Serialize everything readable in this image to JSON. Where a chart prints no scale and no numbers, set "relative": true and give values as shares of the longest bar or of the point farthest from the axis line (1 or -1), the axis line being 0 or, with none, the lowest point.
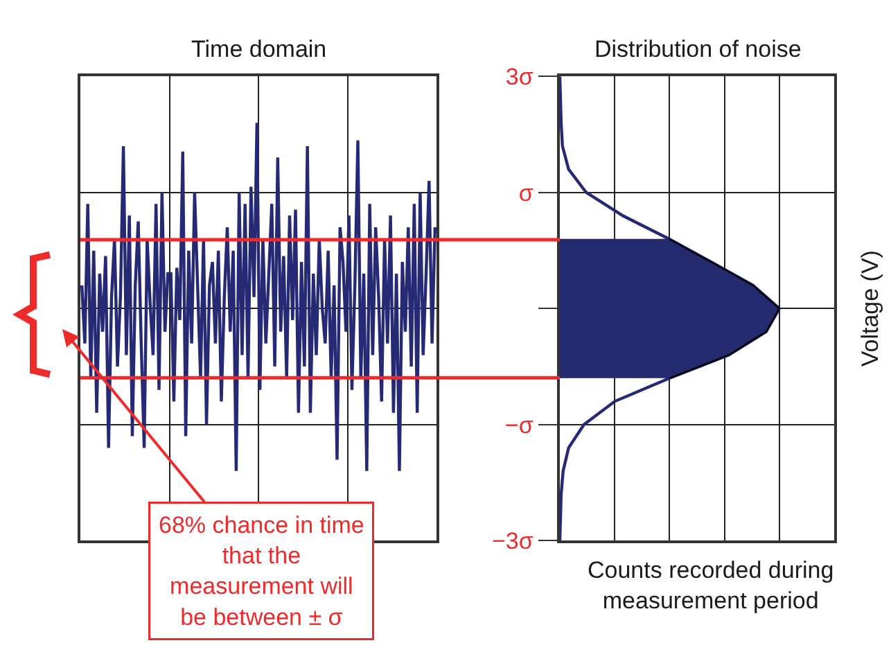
{
  "chart_data": [
    {
      "type": "line",
      "title": "Time domain",
      "relative": true,
      "categories": [
        null,
        null,
        null,
        null,
        null,
        null,
        null,
        null,
        null,
        null,
        null,
        null,
        null,
        null,
        null,
        null,
        null,
        null,
        null,
        null,
        null,
        null,
        null,
        null,
        null,
        null,
        null,
        null,
        null,
        null,
        null,
        null,
        null,
        null,
        null,
        null,
        null,
        null,
        null,
        null,
        null,
        null,
        null,
        null,
        null,
        null,
        null,
        null,
        null,
        null,
        null,
        null,
        null,
        null,
        null,
        null,
        null,
        null,
        null,
        null,
        null,
        null,
        null,
        null,
        null,
        null,
        null,
        null,
        null,
        null,
        null,
        null,
        null,
        null,
        null,
        null,
        null,
        null,
        null,
        null,
        null,
        null,
        null,
        null,
        null,
        null,
        null,
        null,
        null,
        null,
        null,
        null,
        null,
        null,
        null,
        null,
        null,
        null,
        null,
        null,
        null,
        null,
        null,
        null,
        null,
        null,
        null,
        null,
        null,
        null,
        null,
        null,
        null,
        null,
        null,
        null,
        null,
        null,
        null,
        null
      ],
      "values": [
        0.611,
        0.472,
        0.806,
        0.389,
        0.694,
        0.306,
        0.639,
        0.5,
        0.681,
        0.222,
        0.583,
        0.722,
        0.417,
        0.583,
        0.944,
        0.444,
        0.778,
        0.25,
        0.611,
        0.764,
        0.472,
        0.222,
        0.722,
        0.569,
        0.444,
        0.806,
        0.361,
        0.833,
        0.5,
        0.639,
        0.639,
        0.333,
        0.653,
        0.528,
        0.931,
        0.25,
        0.694,
        0.472,
        0.833,
        0.611,
        0.389,
        0.722,
        0.278,
        0.611,
        0.667,
        0.472,
        0.694,
        0.333,
        0.583,
        0.75,
        0.5,
        0.694,
        0.167,
        0.833,
        0.444,
        0.806,
        0.389,
        0.847,
        0.583,
        1,
        0.361,
        0.722,
        0.472,
        0.639,
        0.806,
        0.417,
        0.917,
        0.5,
        0.681,
        0.389,
        0.778,
        0.528,
        0.792,
        0.306,
        0.667,
        0.417,
        0.944,
        0.306,
        0.639,
        0.444,
        0.722,
        0.556,
        0.472,
        0.694,
        0.389,
        0.611,
        0.194,
        0.75,
        0.667,
        0.5,
        0.778,
        0.361,
        0.611,
        0.958,
        0.389,
        0.639,
        0.167,
        0.806,
        0.444,
        0.75,
        0.583,
        0.333,
        0.722,
        0.472,
        0.778,
        0.306,
        0.639,
        0.167,
        0.667,
        0.5,
        0.75,
        0.417,
        0.806,
        0.306,
        0.833,
        0.444,
        0.639,
        0.861,
        0.472,
        0.75
      ],
      "color": "#262a75",
      "grid": true,
      "ref_lines": [
        {
          "axis": "y",
          "value": 0.72,
          "color": "#ee2b2b"
        },
        {
          "axis": "y",
          "value": 0.39,
          "color": "#ee2b2b"
        }
      ],
      "annotations": [
        "68% chance in time that the measurement will be between ± σ"
      ]
    },
    {
      "type": "line",
      "orientation": "horizontal",
      "relative": true,
      "title": "Distribution of noise",
      "xlabel": "Counts recorded during measurement period",
      "ylabel": "Voltage (V)",
      "categories": [
        "3σ",
        null,
        null,
        null,
        null,
        "σ",
        null,
        null,
        null,
        null,
        null,
        null,
        null,
        null,
        null,
        "−σ",
        null,
        null,
        null,
        null,
        "−3σ"
      ],
      "series": [
        {
          "color": "#262a75",
          "values": [
            0,
            0.003,
            0.006,
            0.012,
            0.04,
            0.12,
            0.287,
            0.497,
            0.69,
            0.88,
            1.0,
            0.94,
            0.77,
            0.5,
            0.25,
            0.11,
            0.04,
            0.015,
            0.006,
            0.003,
            0
          ]
        },
        {
          "type": "area",
          "color": "#232a6e",
          "values": [
            null,
            null,
            null,
            null,
            null,
            null,
            null,
            0.497,
            0.69,
            0.88,
            1.0,
            0.94,
            0.77,
            0.5,
            null,
            null,
            null,
            null,
            null,
            null,
            null
          ]
        }
      ],
      "grid": true
    }
  ]
}
